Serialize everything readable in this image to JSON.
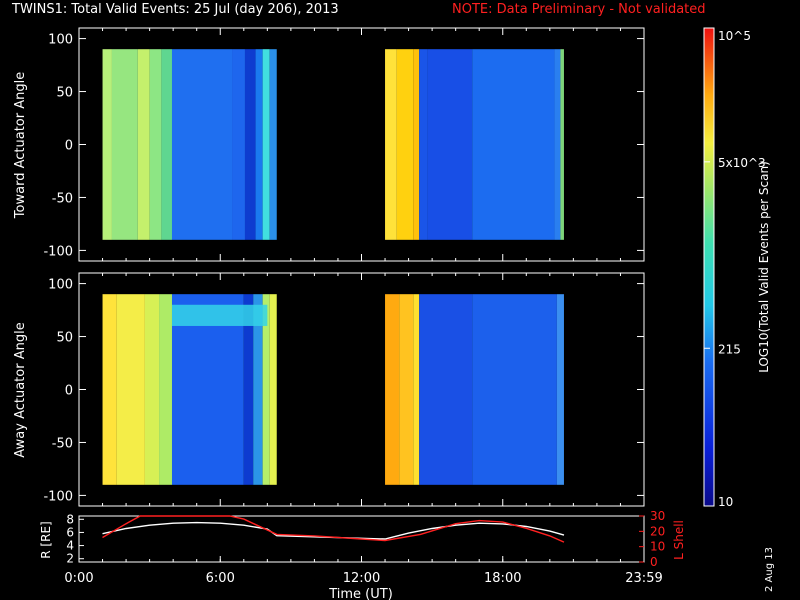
{
  "header": {
    "title": "TWINS1: Total Valid Events: 25 Jul (day 206), 2013",
    "note": "NOTE: Data Preliminary - Not validated"
  },
  "side_stamp": "2 Aug 13",
  "colors": {
    "background": "#000000",
    "axes": "#ffffff",
    "note": "#ff2020",
    "r_line": "#ffffff",
    "lshell_line": "#ff2020"
  },
  "chart_data": [
    {
      "type": "heatmap",
      "panel": "top",
      "ylabel": "Toward Actuator Angle",
      "xlim": [
        0,
        24
      ],
      "ylim": [
        -110,
        110
      ],
      "yticks": [
        100,
        50,
        0,
        -50,
        -100
      ],
      "data_y_range": [
        -90,
        90
      ],
      "intervals": [
        {
          "t_start": 1.0,
          "t_end": 8.4,
          "columns": [
            [
              1.0,
              "#b7f07a"
            ],
            [
              1.4,
              "#96e680"
            ],
            [
              2.5,
              "#c4f06c"
            ],
            [
              3.0,
              "#8de684"
            ],
            [
              3.5,
              "#5fd690"
            ],
            [
              3.95,
              "#1f6ff0"
            ],
            [
              6.5,
              "#1e66ee"
            ],
            [
              7.05,
              "#0e3ccf"
            ],
            [
              7.5,
              "#1a7aef"
            ],
            [
              7.8,
              "#41e0df"
            ],
            [
              8.1,
              "#2a8fe8"
            ]
          ]
        },
        {
          "t_start": 13.0,
          "t_end": 20.6,
          "columns": [
            [
              13.0,
              "#ffe23a"
            ],
            [
              13.5,
              "#ffd10f"
            ],
            [
              14.2,
              "#ffc10c"
            ],
            [
              14.45,
              "#1a55e8"
            ],
            [
              14.8,
              "#184fe6"
            ],
            [
              16.7,
              "#1c6cf0"
            ],
            [
              20.2,
              "#2a7ff0"
            ],
            [
              20.45,
              "#7ed47a"
            ]
          ]
        }
      ]
    },
    {
      "type": "heatmap",
      "panel": "bottom",
      "ylabel": "Away Actuator Angle",
      "xlim": [
        0,
        24
      ],
      "ylim": [
        -110,
        110
      ],
      "yticks": [
        100,
        50,
        0,
        -50,
        -100
      ],
      "data_y_range": [
        -90,
        90
      ],
      "intervals": [
        {
          "t_start": 1.0,
          "t_end": 8.4,
          "columns": [
            [
              1.0,
              "#ffe33b"
            ],
            [
              1.6,
              "#f4ed48"
            ],
            [
              2.8,
              "#d7f055"
            ],
            [
              3.4,
              "#aeeb66"
            ],
            [
              3.95,
              "#1b5fee"
            ],
            [
              7.0,
              "#0d3bd0"
            ],
            [
              7.4,
              "#2b95e8"
            ],
            [
              7.8,
              "#b5ee6a"
            ],
            [
              8.1,
              "#e3f04f"
            ]
          ]
        },
        {
          "t_start": 13.0,
          "t_end": 20.6,
          "columns": [
            [
              13.0,
              "#ffaa10"
            ],
            [
              13.6,
              "#ffc320"
            ],
            [
              14.2,
              "#ffe030"
            ],
            [
              14.45,
              "#1a50e5"
            ],
            [
              16.7,
              "#1c60ec"
            ],
            [
              20.3,
              "#3b8ff0"
            ]
          ]
        }
      ],
      "band": {
        "t_start": 3.95,
        "t_end": 8.0,
        "angle_low": 60,
        "angle_high": 80,
        "color": "#34d4e8"
      }
    },
    {
      "type": "line",
      "panel": "ephemeris",
      "xlabel": "Time (UT)",
      "xlim": [
        0,
        24
      ],
      "x_tick_positions": [
        0,
        6,
        12,
        18,
        24
      ],
      "x_tick_labels": [
        "0:00",
        "6:00",
        "12:00",
        "18:00",
        "23:59"
      ],
      "ylabel_left": "R [RE]",
      "ylabel_right": "L Shell",
      "ylim_left": [
        1.5,
        8.5
      ],
      "yticks_left": [
        2,
        4,
        6,
        8
      ],
      "ylim_right": [
        0,
        30
      ],
      "yticks_right": [
        0,
        10,
        20,
        30
      ],
      "series": [
        {
          "axis": "left",
          "x": [
            1.0,
            2.0,
            3.0,
            4.0,
            5.0,
            6.0,
            7.0,
            8.0,
            8.4,
            13.0,
            14.0,
            15.0,
            16.0,
            17.0,
            18.0,
            19.0,
            20.0,
            20.6
          ],
          "y": [
            5.8,
            6.6,
            7.1,
            7.4,
            7.5,
            7.4,
            7.1,
            6.5,
            5.5,
            5.0,
            5.9,
            6.6,
            7.1,
            7.4,
            7.3,
            6.9,
            6.2,
            5.6
          ]
        },
        {
          "axis": "right",
          "x": [
            1.0,
            2.0,
            2.6,
            6.4,
            7.0,
            8.4,
            10.0,
            12.0,
            13.0,
            14.5,
            16.0,
            17.0,
            18.0,
            19.0,
            20.0,
            20.6
          ],
          "y": [
            16,
            25,
            30,
            30,
            28,
            18,
            17,
            15,
            14,
            18,
            25,
            27,
            26,
            22,
            17,
            13
          ]
        }
      ]
    }
  ],
  "colorbar": {
    "label": "LOG10(Total Valid Events per Scan)",
    "ticks": [
      {
        "frac": 1.0,
        "label": "10^5"
      },
      {
        "frac": 0.72,
        "label": "5x10^3"
      },
      {
        "frac": 0.33,
        "label": "215"
      },
      {
        "frac": 0.0,
        "label": "10"
      }
    ]
  }
}
